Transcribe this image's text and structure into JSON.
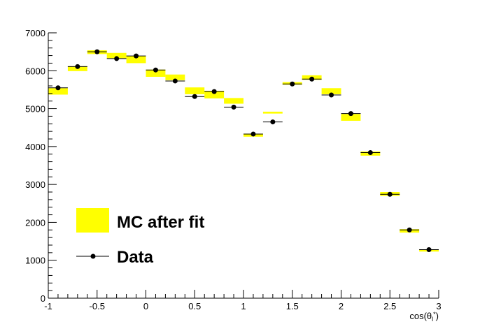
{
  "chart_data": {
    "type": "scatter",
    "xlabel": "cos(θ_l*)",
    "xlim": [
      -1,
      3
    ],
    "ylim": [
      0,
      7000
    ],
    "x_ticks": [
      "-1",
      "-0.5",
      "0",
      "0.5",
      "1",
      "1.5",
      "2",
      "2.5",
      "3"
    ],
    "y_ticks": [
      "0",
      "1000",
      "2000",
      "3000",
      "4000",
      "5000",
      "6000",
      "7000"
    ],
    "grid": false,
    "legend_position": "bottom-left",
    "legend": [
      {
        "label": "MC after fit",
        "style": "yellow-band"
      },
      {
        "label": "Data",
        "style": "marker-with-bar"
      }
    ],
    "bins": {
      "edges": [
        -1,
        -0.8,
        -0.6,
        -0.4,
        -0.2,
        0,
        0.2,
        0.4,
        0.6,
        0.8,
        1,
        1.2,
        1.4,
        1.6,
        1.8,
        2,
        2.2,
        2.4,
        2.6,
        2.8,
        3
      ]
    },
    "series": [
      {
        "name": "MC after fit",
        "type": "band",
        "color": "#ffff00",
        "low": [
          5370,
          5990,
          6440,
          6330,
          6200,
          5840,
          5750,
          5380,
          5270,
          5130,
          4260,
          4870,
          5630,
          5760,
          5380,
          4680,
          3760,
          2700,
          1730,
          1230
        ],
        "high": [
          5540,
          6120,
          6540,
          6470,
          6390,
          6030,
          5900,
          5560,
          5470,
          5280,
          4340,
          4920,
          5700,
          5880,
          5540,
          4860,
          3870,
          2800,
          1820,
          1290
        ]
      },
      {
        "name": "Data",
        "type": "points",
        "color": "#000000",
        "x": [
          -0.9,
          -0.7,
          -0.5,
          -0.3,
          -0.1,
          0.1,
          0.3,
          0.5,
          0.7,
          0.9,
          1.1,
          1.3,
          1.5,
          1.7,
          1.9,
          2.1,
          2.3,
          2.5,
          2.7,
          2.9
        ],
        "y": [
          5550,
          6110,
          6500,
          6320,
          6390,
          6020,
          5730,
          5320,
          5450,
          5040,
          4330,
          4650,
          5650,
          5780,
          5360,
          4870,
          3840,
          2740,
          1800,
          1280
        ]
      }
    ]
  }
}
